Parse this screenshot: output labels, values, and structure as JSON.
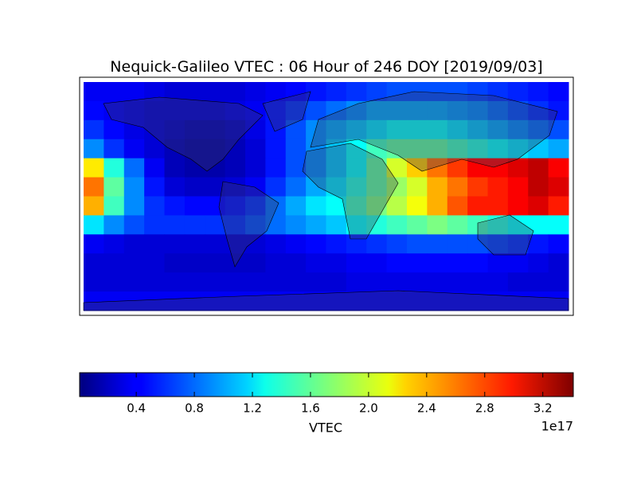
{
  "chart_data": {
    "type": "heatmap",
    "title": "Nequick-Galileo VTEC : 06 Hour of 246 DOY [2019/09/03]",
    "colormap": "jet",
    "values": [
      [
        0.4,
        0.4,
        0.4,
        0.35,
        0.3,
        0.3,
        0.3,
        0.3,
        0.35,
        0.4,
        0.45,
        0.5,
        0.55,
        0.6,
        0.65,
        0.7,
        0.7,
        0.7,
        0.7,
        0.65,
        0.6,
        0.55,
        0.5,
        0.45
      ],
      [
        0.45,
        0.4,
        0.35,
        0.3,
        0.3,
        0.3,
        0.3,
        0.35,
        0.4,
        0.5,
        0.6,
        0.7,
        0.8,
        0.9,
        1.0,
        1.0,
        1.0,
        1.0,
        0.95,
        0.9,
        0.8,
        0.7,
        0.6,
        0.5
      ],
      [
        0.6,
        0.45,
        0.35,
        0.3,
        0.25,
        0.2,
        0.2,
        0.25,
        0.35,
        0.5,
        0.7,
        0.9,
        1.0,
        1.1,
        1.2,
        1.3,
        1.3,
        1.3,
        1.2,
        1.1,
        1.0,
        0.9,
        0.8,
        0.7
      ],
      [
        0.9,
        0.6,
        0.4,
        0.3,
        0.2,
        0.15,
        0.15,
        0.2,
        0.3,
        0.5,
        0.7,
        0.9,
        1.1,
        1.3,
        1.5,
        1.6,
        1.6,
        1.6,
        1.5,
        1.4,
        1.3,
        1.2,
        1.1,
        1.0
      ],
      [
        2.2,
        1.4,
        0.8,
        0.4,
        0.2,
        0.15,
        0.15,
        0.2,
        0.3,
        0.5,
        0.7,
        0.9,
        1.1,
        1.3,
        1.6,
        2.0,
        2.3,
        2.6,
        2.8,
        3.0,
        3.0,
        3.1,
        3.2,
        3.0
      ],
      [
        2.6,
        1.6,
        0.9,
        0.5,
        0.3,
        0.25,
        0.25,
        0.3,
        0.4,
        0.6,
        0.8,
        1.0,
        1.2,
        1.4,
        1.6,
        1.8,
        2.0,
        2.4,
        2.6,
        2.8,
        2.9,
        3.0,
        3.2,
        3.1
      ],
      [
        2.4,
        1.5,
        0.9,
        0.6,
        0.5,
        0.45,
        0.45,
        0.5,
        0.6,
        0.8,
        1.0,
        1.2,
        1.3,
        1.5,
        1.7,
        1.9,
        2.1,
        2.4,
        2.7,
        2.9,
        2.9,
        3.0,
        3.1,
        2.9
      ],
      [
        1.2,
        0.9,
        0.7,
        0.6,
        0.6,
        0.6,
        0.6,
        0.6,
        0.7,
        0.8,
        0.9,
        1.0,
        1.1,
        1.3,
        1.4,
        1.5,
        1.6,
        1.7,
        1.6,
        1.5,
        1.4,
        1.3,
        1.3,
        1.3
      ],
      [
        0.4,
        0.35,
        0.3,
        0.3,
        0.3,
        0.3,
        0.3,
        0.3,
        0.3,
        0.35,
        0.4,
        0.45,
        0.5,
        0.55,
        0.6,
        0.65,
        0.7,
        0.7,
        0.7,
        0.7,
        0.65,
        0.6,
        0.5,
        0.45
      ],
      [
        0.3,
        0.3,
        0.3,
        0.3,
        0.25,
        0.25,
        0.25,
        0.25,
        0.25,
        0.3,
        0.3,
        0.35,
        0.35,
        0.4,
        0.4,
        0.45,
        0.45,
        0.45,
        0.45,
        0.45,
        0.4,
        0.4,
        0.35,
        0.3
      ],
      [
        0.3,
        0.3,
        0.3,
        0.3,
        0.3,
        0.3,
        0.3,
        0.3,
        0.3,
        0.3,
        0.3,
        0.3,
        0.3,
        0.35,
        0.35,
        0.35,
        0.35,
        0.35,
        0.35,
        0.35,
        0.35,
        0.3,
        0.3,
        0.3
      ],
      [
        0.4,
        0.4,
        0.4,
        0.4,
        0.4,
        0.4,
        0.4,
        0.4,
        0.4,
        0.4,
        0.4,
        0.4,
        0.4,
        0.4,
        0.4,
        0.4,
        0.4,
        0.4,
        0.4,
        0.4,
        0.4,
        0.4,
        0.4,
        0.4
      ]
    ],
    "colorbar": {
      "label": "VTEC",
      "offset_label": "1e17",
      "clim": [
        0.01,
        3.41
      ],
      "ticks": [
        0.4,
        0.8,
        1.2,
        1.6,
        {
          "value": 2,
          "label": "2.0"
        },
        2.4,
        2.8,
        3.2
      ]
    }
  }
}
